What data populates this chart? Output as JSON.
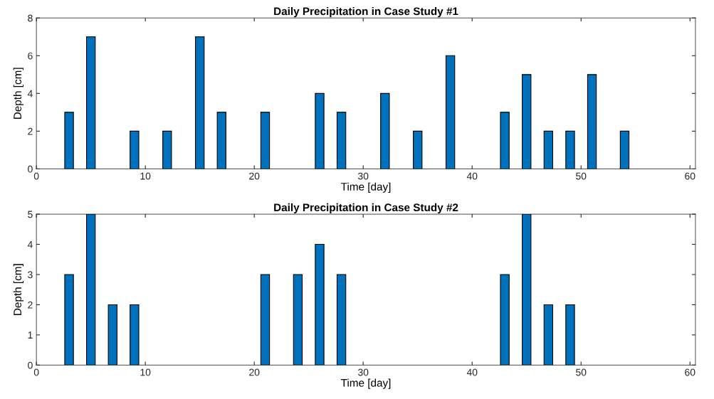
{
  "chart_data": [
    {
      "type": "bar",
      "title": "Daily Precipitation in Case Study #1",
      "xlabel": "Time [day]",
      "ylabel": "Depth [cm]",
      "x": [
        3,
        5,
        9,
        12,
        15,
        17,
        21,
        26,
        28,
        32,
        35,
        38,
        43,
        45,
        47,
        49,
        51,
        54
      ],
      "values": [
        3,
        7,
        2,
        2,
        7,
        3,
        3,
        4,
        3,
        4,
        2,
        6,
        3,
        5,
        2,
        2,
        5,
        2
      ],
      "color": "#0072bd",
      "xlim": [
        0,
        60.5
      ],
      "xticks": [
        0,
        10,
        20,
        30,
        40,
        50,
        60
      ],
      "ylim": [
        0,
        8
      ],
      "yticks": [
        0,
        2,
        4,
        6,
        8
      ],
      "grid": false,
      "legend": false
    },
    {
      "type": "bar",
      "title": "Daily Precipitation in Case Study #2",
      "xlabel": "Time [day]",
      "ylabel": "Depth [cm]",
      "x": [
        3,
        5,
        7,
        9,
        21,
        24,
        26,
        28,
        43,
        45,
        47,
        49
      ],
      "values": [
        3,
        5,
        2,
        2,
        3,
        3,
        4,
        3,
        3,
        5,
        2,
        2
      ],
      "color": "#0072bd",
      "xlim": [
        0,
        60.5
      ],
      "xticks": [
        0,
        10,
        20,
        30,
        40,
        50,
        60
      ],
      "ylim": [
        0,
        5
      ],
      "yticks": [
        0,
        1,
        2,
        3,
        4,
        5
      ],
      "grid": false,
      "legend": false
    }
  ]
}
